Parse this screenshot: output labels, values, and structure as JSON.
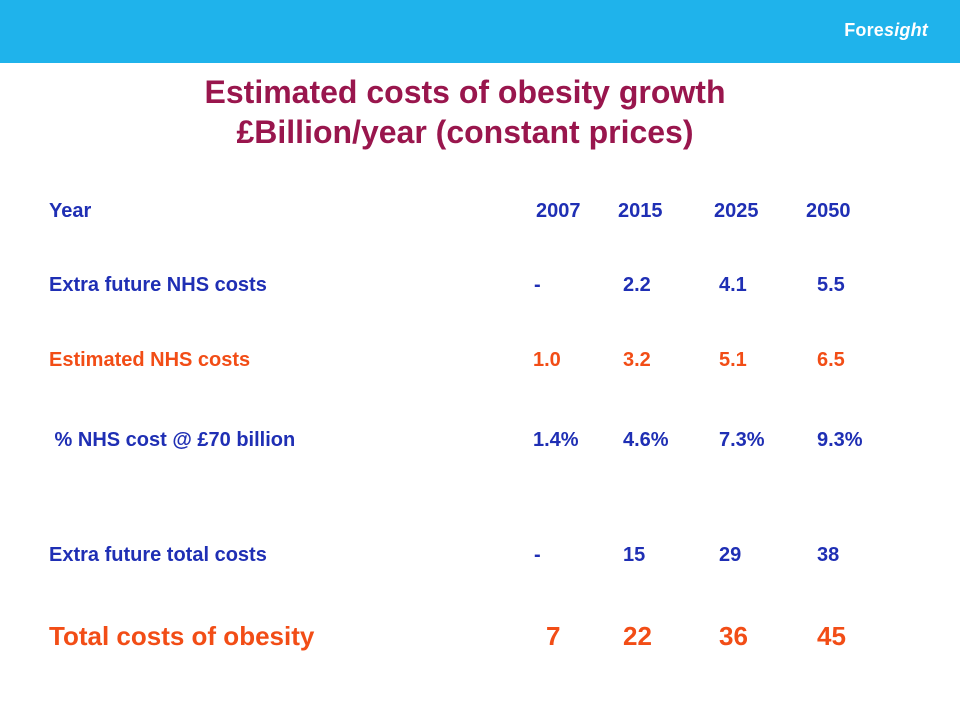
{
  "header": {
    "brand_prefix": "Fore",
    "brand_suffix": "sight",
    "bar_color": "#1fb3eb"
  },
  "title": {
    "line1": "Estimated costs of obesity growth",
    "line2": "£Billion/year (constant prices)",
    "color": "#99164d"
  },
  "table": {
    "header_label": "Year",
    "years": [
      "2007",
      "2015",
      "2025",
      "2050"
    ],
    "rows": [
      {
        "label": "Extra future NHS costs",
        "values": [
          "-",
          "2.2",
          "4.1",
          "5.5"
        ],
        "color": "#1f2fb4"
      },
      {
        "label": "Estimated NHS costs",
        "values": [
          "1.0",
          "3.2",
          "5.1",
          "6.5"
        ],
        "color": "#f24d16"
      },
      {
        "label": " % NHS cost @ £70 billion",
        "values": [
          "1.4%",
          "4.6%",
          "7.3%",
          "9.3%"
        ],
        "color": "#1f2fb4"
      },
      {
        "label": "Extra future total costs",
        "values": [
          "-",
          "15",
          "29",
          "38"
        ],
        "color": "#1f2fb4"
      },
      {
        "label": "Total costs of obesity",
        "values": [
          "7",
          "22",
          "36",
          "45"
        ],
        "color": "#f24d16"
      }
    ]
  }
}
